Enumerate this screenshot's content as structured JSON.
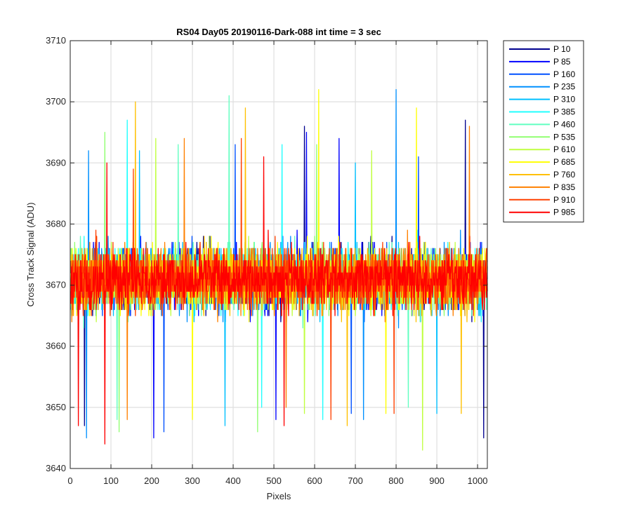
{
  "chart_data": {
    "type": "line",
    "title": "RS04 Day05 20190116-Dark-088 int time = 3 sec",
    "xlabel": "Pixels",
    "ylabel": "Cross Track Signal (ADU)",
    "xlim": [
      0,
      1024
    ],
    "ylim": [
      3640,
      3710
    ],
    "x_ticks": [
      0,
      100,
      200,
      300,
      400,
      500,
      600,
      700,
      800,
      900,
      1000
    ],
    "y_ticks": [
      3640,
      3650,
      3660,
      3670,
      3680,
      3690,
      3700,
      3710
    ],
    "grid": true,
    "legend_position": "outside-right",
    "x": "pixel index 1 to 1024",
    "noise_model": {
      "mean": 3671,
      "min": 3643,
      "max": 3702
    },
    "series": [
      {
        "name": "P 10",
        "color": "#00008f",
        "peaks": [
          {
            "x": 575,
            "y": 3696
          },
          {
            "x": 970,
            "y": 3697
          }
        ],
        "troughs": [
          {
            "x": 35,
            "y": 3647
          },
          {
            "x": 1015,
            "y": 3645
          }
        ]
      },
      {
        "name": "P 85",
        "color": "#0000ff",
        "peaks": [
          {
            "x": 660,
            "y": 3694
          },
          {
            "x": 580,
            "y": 3695
          }
        ],
        "troughs": [
          {
            "x": 205,
            "y": 3645
          },
          {
            "x": 505,
            "y": 3648
          }
        ]
      },
      {
        "name": "P 160",
        "color": "#0050ff",
        "peaks": [
          {
            "x": 405,
            "y": 3693
          },
          {
            "x": 855,
            "y": 3691
          }
        ],
        "troughs": [
          {
            "x": 690,
            "y": 3649
          },
          {
            "x": 230,
            "y": 3646
          }
        ]
      },
      {
        "name": "P 235",
        "color": "#0090ff",
        "peaks": [
          {
            "x": 800,
            "y": 3702
          },
          {
            "x": 45,
            "y": 3692
          }
        ],
        "troughs": [
          {
            "x": 40,
            "y": 3645
          },
          {
            "x": 720,
            "y": 3648
          }
        ]
      },
      {
        "name": "P 310",
        "color": "#00c0ff",
        "peaks": [
          {
            "x": 170,
            "y": 3692
          },
          {
            "x": 700,
            "y": 3690
          }
        ],
        "troughs": [
          {
            "x": 380,
            "y": 3647
          },
          {
            "x": 900,
            "y": 3649
          }
        ]
      },
      {
        "name": "P 385",
        "color": "#20ffff",
        "peaks": [
          {
            "x": 140,
            "y": 3697
          },
          {
            "x": 520,
            "y": 3693
          }
        ],
        "troughs": [
          {
            "x": 620,
            "y": 3648
          },
          {
            "x": 470,
            "y": 3650
          }
        ]
      },
      {
        "name": "P 460",
        "color": "#60ffc0",
        "peaks": [
          {
            "x": 390,
            "y": 3701
          },
          {
            "x": 265,
            "y": 3693
          }
        ],
        "troughs": [
          {
            "x": 830,
            "y": 3650
          },
          {
            "x": 115,
            "y": 3648
          }
        ]
      },
      {
        "name": "P 535",
        "color": "#90ff70",
        "peaks": [
          {
            "x": 85,
            "y": 3695
          },
          {
            "x": 605,
            "y": 3693
          }
        ],
        "troughs": [
          {
            "x": 120,
            "y": 3646
          },
          {
            "x": 460,
            "y": 3646
          }
        ]
      },
      {
        "name": "P 610",
        "color": "#c0ff40",
        "peaks": [
          {
            "x": 210,
            "y": 3694
          },
          {
            "x": 740,
            "y": 3692
          }
        ],
        "troughs": [
          {
            "x": 865,
            "y": 3643
          },
          {
            "x": 575,
            "y": 3649
          }
        ]
      },
      {
        "name": "P 685",
        "color": "#ffff00",
        "peaks": [
          {
            "x": 610,
            "y": 3702
          },
          {
            "x": 850,
            "y": 3699
          }
        ],
        "troughs": [
          {
            "x": 300,
            "y": 3648
          },
          {
            "x": 775,
            "y": 3649
          }
        ]
      },
      {
        "name": "P 760",
        "color": "#ffc000",
        "peaks": [
          {
            "x": 160,
            "y": 3700
          },
          {
            "x": 430,
            "y": 3699
          }
        ],
        "troughs": [
          {
            "x": 680,
            "y": 3647
          },
          {
            "x": 960,
            "y": 3649
          }
        ]
      },
      {
        "name": "P 835",
        "color": "#ff8000",
        "peaks": [
          {
            "x": 980,
            "y": 3696
          },
          {
            "x": 280,
            "y": 3694
          }
        ],
        "troughs": [
          {
            "x": 530,
            "y": 3650
          },
          {
            "x": 140,
            "y": 3648
          }
        ]
      },
      {
        "name": "P 910",
        "color": "#ff4000",
        "peaks": [
          {
            "x": 420,
            "y": 3694
          },
          {
            "x": 155,
            "y": 3689
          }
        ],
        "troughs": [
          {
            "x": 640,
            "y": 3648
          },
          {
            "x": 795,
            "y": 3649
          }
        ]
      },
      {
        "name": "P 985",
        "color": "#ff0000",
        "peaks": [
          {
            "x": 90,
            "y": 3690
          },
          {
            "x": 475,
            "y": 3691
          }
        ],
        "troughs": [
          {
            "x": 85,
            "y": 3644
          },
          {
            "x": 525,
            "y": 3647
          },
          {
            "x": 20,
            "y": 3647
          }
        ]
      }
    ]
  }
}
